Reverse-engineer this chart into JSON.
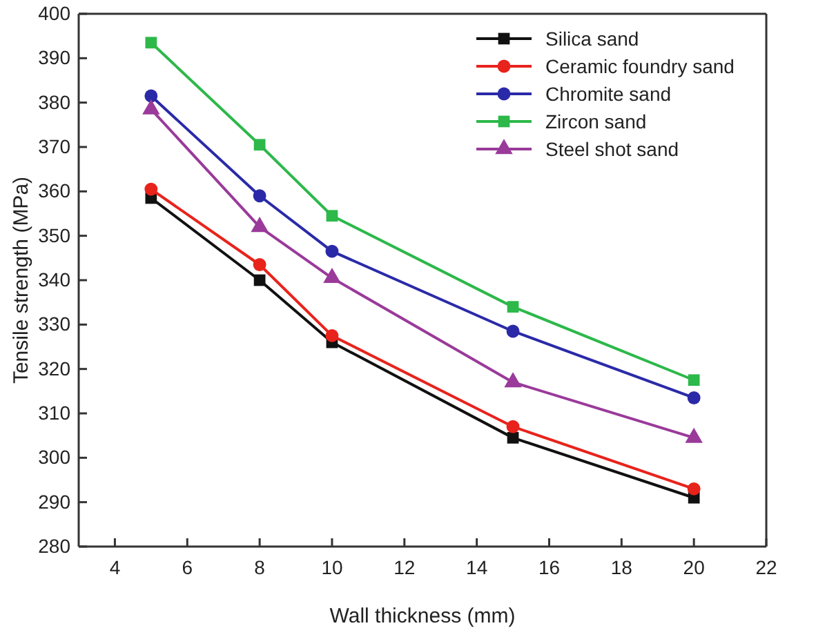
{
  "chart_data": {
    "type": "line",
    "xlabel": "Wall thickness (mm)",
    "ylabel": "Tensile strength (MPa)",
    "xlim": [
      3,
      22
    ],
    "xticks": [
      4,
      6,
      8,
      10,
      12,
      14,
      16,
      18,
      20,
      22
    ],
    "ylim": [
      280,
      400
    ],
    "yticks": [
      280,
      290,
      300,
      310,
      320,
      330,
      340,
      350,
      360,
      370,
      380,
      390,
      400
    ],
    "grid": false,
    "legend": "top right",
    "x": [
      5,
      8,
      10,
      15,
      20
    ],
    "series": [
      {
        "name": "Silica sand",
        "color": "#111111",
        "marker": "square",
        "values": [
          358.5,
          340,
          326,
          304.5,
          291
        ]
      },
      {
        "name": "Ceramic foundry sand",
        "color": "#e8231c",
        "marker": "circle",
        "values": [
          360.5,
          343.5,
          327.5,
          307,
          293
        ]
      },
      {
        "name": "Chromite sand",
        "color": "#2a2aa8",
        "marker": "circle",
        "values": [
          381.5,
          359,
          346.5,
          328.5,
          313.5
        ]
      },
      {
        "name": "Zircon sand",
        "color": "#2db84a",
        "marker": "square",
        "values": [
          393.5,
          370.5,
          354.5,
          334,
          317.5
        ]
      },
      {
        "name": "Steel shot sand",
        "color": "#9a3a9a",
        "marker": "triangle",
        "values": [
          378.5,
          352,
          340.5,
          317,
          304.5
        ]
      }
    ]
  }
}
